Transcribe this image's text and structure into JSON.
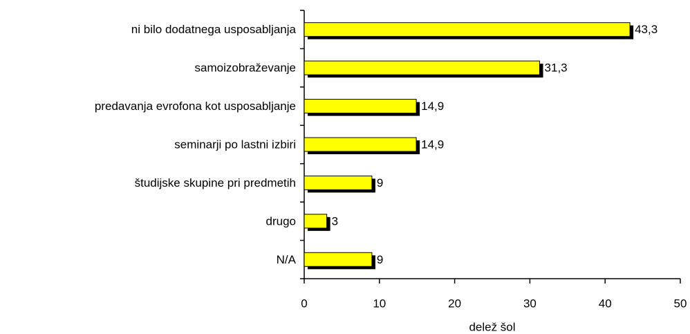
{
  "chart_data": {
    "type": "bar",
    "orientation": "horizontal",
    "categories": [
      "ni bilo dodatnega usposabljanja",
      "samoizobraževanje",
      "predavanja evrofona kot usposabljanje",
      "seminarji po lastni izbiri",
      "študijske skupine pri predmetih",
      "drugo",
      "N/A"
    ],
    "values": [
      43.3,
      31.3,
      14.9,
      14.9,
      9,
      3,
      9
    ],
    "value_labels": [
      "43,3",
      "31,3",
      "14,9",
      "14,9",
      "9",
      "3",
      "9"
    ],
    "color": "#ffff00",
    "shadow_color": "#000000",
    "xlabel": "delež šol",
    "xlim": [
      0,
      50
    ],
    "xticks": [
      0,
      10,
      20,
      30,
      40,
      50
    ],
    "grid": false
  }
}
